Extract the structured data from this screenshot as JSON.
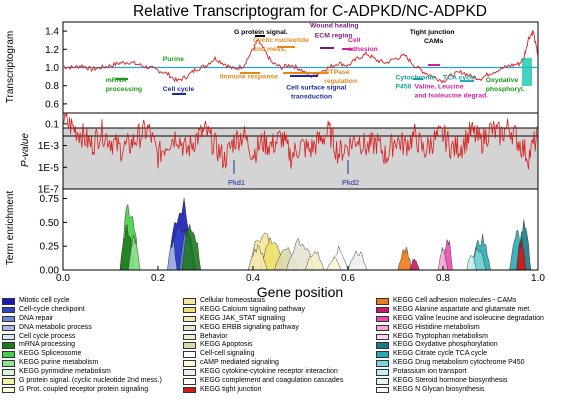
{
  "chart_data": {
    "type": "line",
    "title": "Relative Transcriptogram for C-ADPKD/NC-ADPKD",
    "xlabel": "Gene position",
    "xlim": [
      0,
      1
    ],
    "xticks": [
      "0.0",
      "0.2",
      "0.4",
      "0.6",
      "0.8",
      "1.0"
    ],
    "panels": [
      {
        "id": "transcriptogram",
        "ylabel": "Transcriptogram",
        "ylim": [
          0.5,
          1.5
        ],
        "yticks": [
          "0.6",
          "0.8",
          "1.0",
          "1.2",
          "1.4"
        ],
        "reference_line": 1.0,
        "series": [
          {
            "color": "#d62020",
            "x": [
              0,
              0.02,
              0.04,
              0.06,
              0.08,
              0.1,
              0.12,
              0.14,
              0.16,
              0.18,
              0.2,
              0.22,
              0.24,
              0.26,
              0.28,
              0.3,
              0.32,
              0.34,
              0.36,
              0.38,
              0.4,
              0.41,
              0.42,
              0.44,
              0.46,
              0.48,
              0.5,
              0.52,
              0.54,
              0.56,
              0.58,
              0.6,
              0.62,
              0.64,
              0.66,
              0.68,
              0.7,
              0.72,
              0.74,
              0.76,
              0.78,
              0.8,
              0.82,
              0.84,
              0.86,
              0.88,
              0.9,
              0.92,
              0.94,
              0.96,
              0.97,
              0.98,
              0.99,
              1.0
            ],
            "values": [
              1.01,
              1.0,
              1.02,
              0.98,
              1.0,
              1.02,
              1.05,
              1.06,
              1.03,
              1.0,
              0.97,
              0.93,
              0.85,
              0.9,
              0.98,
              1.02,
              1.1,
              1.04,
              0.98,
              1.02,
              1.2,
              1.3,
              1.22,
              1.05,
              1.0,
              1.03,
              0.98,
              0.9,
              0.95,
              1.0,
              1.05,
              1.02,
              1.1,
              1.15,
              1.08,
              1.05,
              1.1,
              1.13,
              1.02,
              0.95,
              0.9,
              0.85,
              0.92,
              0.95,
              0.9,
              0.88,
              0.94,
              0.98,
              1.02,
              1.04,
              1.1,
              1.32,
              1.4,
              1.12
            ]
          }
        ],
        "annotations": [
          {
            "text": "G protein signal.",
            "x": 0.36,
            "y": 1.37,
            "color": "#000000"
          },
          {
            "text": "Wound healing",
            "x": 0.52,
            "y": 1.44,
            "color": "#7a1a7a"
          },
          {
            "text": "ECM region",
            "x": 0.53,
            "y": 1.33,
            "color": "#7a1a7a"
          },
          {
            "text": "Tight junction",
            "x": 0.73,
            "y": 1.37,
            "color": "#000000"
          },
          {
            "text": "CAMs",
            "x": 0.76,
            "y": 1.27,
            "color": "#000000"
          },
          {
            "text": "Cyclic nucleotide",
            "x": 0.4,
            "y": 1.28,
            "color": "#e0881a"
          },
          {
            "text": "2nd mess.",
            "x": 0.4,
            "y": 1.18,
            "color": "#e0881a"
          },
          {
            "text": "Cell",
            "x": 0.6,
            "y": 1.28,
            "color": "#d0209e"
          },
          {
            "text": "adhesion",
            "x": 0.6,
            "y": 1.18,
            "color": "#d0209e"
          },
          {
            "text": "Purine",
            "x": 0.21,
            "y": 1.07,
            "color": "#1a9a1a"
          },
          {
            "text": "Immune response",
            "x": 0.33,
            "y": 0.88,
            "color": "#e0881a"
          },
          {
            "text": "GTPase",
            "x": 0.55,
            "y": 0.93,
            "color": "#e0881a"
          },
          {
            "text": "regulation",
            "x": 0.55,
            "y": 0.83,
            "color": "#e0881a"
          },
          {
            "text": "mRNA",
            "x": 0.09,
            "y": 0.84,
            "color": "#1a9a1a"
          },
          {
            "text": "processing",
            "x": 0.09,
            "y": 0.74,
            "color": "#1a9a1a"
          },
          {
            "text": "Cell cycle",
            "x": 0.21,
            "y": 0.74,
            "color": "#1a2aa0"
          },
          {
            "text": "Cell surface signal",
            "x": 0.47,
            "y": 0.76,
            "color": "#1a2aa0"
          },
          {
            "text": "transduction",
            "x": 0.48,
            "y": 0.66,
            "color": "#1a2aa0"
          },
          {
            "text": "Cytochrome",
            "x": 0.7,
            "y": 0.87,
            "color": "#17a0a0"
          },
          {
            "text": "P450",
            "x": 0.7,
            "y": 0.77,
            "color": "#17a0a0"
          },
          {
            "text": "TCA cycle",
            "x": 0.8,
            "y": 0.87,
            "color": "#17a0a0"
          },
          {
            "text": "Valine, Leucine",
            "x": 0.74,
            "y": 0.77,
            "color": "#d0209e"
          },
          {
            "text": "and Isoleucine degrad.",
            "x": 0.74,
            "y": 0.67,
            "color": "#d0209e"
          },
          {
            "text": "Oxydative",
            "x": 0.89,
            "y": 0.84,
            "color": "#1a9a1a"
          },
          {
            "text": "phosphoryl.",
            "x": 0.89,
            "y": 0.74,
            "color": "#1a9a1a"
          }
        ]
      },
      {
        "id": "pvalue",
        "ylabel": "P-value",
        "scale": "log",
        "ylim": [
          1e-07,
          1
        ],
        "yticks": [
          "0.1",
          "1E-3",
          "1E-5",
          "1E-7"
        ],
        "series": [
          {
            "color": "#d62020",
            "x": [
              0,
              0.02,
              0.04,
              0.06,
              0.08,
              0.1,
              0.12,
              0.14,
              0.16,
              0.18,
              0.2,
              0.22,
              0.24,
              0.26,
              0.28,
              0.3,
              0.32,
              0.34,
              0.36,
              0.38,
              0.4,
              0.42,
              0.44,
              0.46,
              0.48,
              0.5,
              0.52,
              0.54,
              0.56,
              0.58,
              0.6,
              0.62,
              0.64,
              0.66,
              0.68,
              0.7,
              0.72,
              0.74,
              0.76,
              0.78,
              0.8,
              0.82,
              0.84,
              0.86,
              0.88,
              0.9,
              0.92,
              0.94,
              0.96,
              0.98,
              1.0
            ],
            "values": [
              0.3,
              0.05,
              0.01,
              0.001,
              0.02,
              0.003,
              0.0005,
              0.001,
              0.008,
              0.03,
              0.0001,
              0.002,
              0.01,
              0.0003,
              0.005,
              0.02,
              0.001,
              5e-05,
              0.003,
              0.01,
              0.0002,
              0.002,
              0.001,
              0.006,
              0.0001,
              0.001,
              0.0004,
              0.003,
              0.02,
              0.0002,
              0.001,
              0.005,
              0.0006,
              0.002,
              0.0001,
              0.004,
              0.001,
              0.008,
              0.0003,
              0.003,
              0.01,
              0.0005,
              0.001,
              0.02,
              0.002,
              0.03,
              0.01,
              0.05,
              0.002,
              0.0001,
              0.01
            ]
          }
        ],
        "markers": [
          {
            "text": "Pkd1",
            "x": 0.36
          },
          {
            "text": "Pkd2",
            "x": 0.6
          }
        ]
      },
      {
        "id": "enrichment",
        "ylabel": "Term enrichment",
        "ylim": [
          0,
          0.85
        ],
        "yticks": [
          "0.00",
          "0.25",
          "0.50",
          "0.75"
        ]
      }
    ],
    "legend": [
      {
        "label": "Mitotic cell cycle",
        "color": "#1a1ab8"
      },
      {
        "label": "Cell-cycle checkpoint",
        "color": "#2f44c8"
      },
      {
        "label": "DNA repair",
        "color": "#6e88d8"
      },
      {
        "label": "DNA metabolic process",
        "color": "#a8b8e8"
      },
      {
        "label": "Cell cycle process",
        "color": "#dde4f6"
      },
      {
        "label": "mRNA processing",
        "color": "#1f7a1f"
      },
      {
        "label": "KEGG Spliceosome",
        "color": "#44d044"
      },
      {
        "label": "KEGG purine metabolism",
        "color": "#8ee38e"
      },
      {
        "label": "KEGG pyrimidine metabolism",
        "color": "#d9f5d9"
      },
      {
        "label": "G protein signal. (cyclic nucleotide 2nd mess.)",
        "color": "#f5f5a8"
      },
      {
        "label": "G Prot. coupled receptor protein signaling",
        "color": "#ffffe0"
      },
      {
        "label": "Cellular homeostasis",
        "color": "#f6e79a"
      },
      {
        "label": "KEGG Calcium signaling pathway",
        "color": "#ece16e"
      },
      {
        "label": "KEGG JAK_STAT signaling",
        "color": "#f4e8b0"
      },
      {
        "label": "KEGG ERBB signaling pathway",
        "color": "#e8e3d0"
      },
      {
        "label": "Behavior",
        "color": "#f2edc8"
      },
      {
        "label": "KEGG Apoptosis",
        "color": "#ddd8a8"
      },
      {
        "label": "Cell-cell signaling",
        "color": "#ffffff"
      },
      {
        "label": "cAMP mediated signaling",
        "color": "#fff8d8"
      },
      {
        "label": "KEGG cytokine-cytokine receptor interaction",
        "color": "#eeeeee"
      },
      {
        "label": "KEGG complement and coagulation cascades",
        "color": "#fffdf0"
      },
      {
        "label": "KEGG tight junction",
        "color": "#d21a1a"
      },
      {
        "label": "KEGG Cell adhesion molecules - CAMs",
        "color": "#f07a1a"
      },
      {
        "label": "KEGG Alanine aspartate and glutamate met.",
        "color": "#c81a6a"
      },
      {
        "label": "KEGG Valine leucine and isoleucine degradation",
        "color": "#f04ab4"
      },
      {
        "label": "KEGG Histidine metabolism",
        "color": "#f5a8d8"
      },
      {
        "label": "KEGG Tryptophan metabolism",
        "color": "#fbd8ee"
      },
      {
        "label": "KEGG Oxydative phosphorylation",
        "color": "#1a7a8a"
      },
      {
        "label": "KEGG Citrate cycle TCA cycle",
        "color": "#2aaab4"
      },
      {
        "label": "KEGG Drug metabolism cytochrome P450",
        "color": "#7ad4d8"
      },
      {
        "label": "Potassium ion transport",
        "color": "#c4eef0"
      },
      {
        "label": "KEGG Steroid hormone biosynthesis",
        "color": "#e4f6f7"
      },
      {
        "label": "KEGG N Glycan biosynthesis",
        "color": "#ffffff"
      }
    ]
  }
}
